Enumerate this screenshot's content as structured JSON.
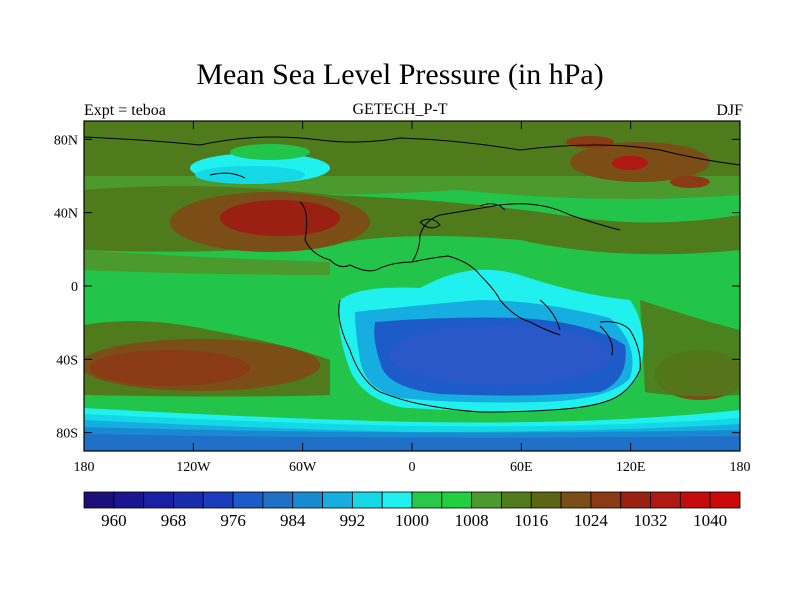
{
  "title": "Mean Sea Level Pressure (in hPa)",
  "subtitle": "GETECH_P-T",
  "left_label": "Expt = teboa",
  "right_label": "DJF",
  "map": {
    "lon_range": [
      -180,
      180
    ],
    "lat_range": [
      -90,
      90
    ],
    "lat_ticks": [
      {
        "value": 80,
        "label": "80N"
      },
      {
        "value": 40,
        "label": "40N"
      },
      {
        "value": 0,
        "label": "0"
      },
      {
        "value": -40,
        "label": "40S"
      },
      {
        "value": -80,
        "label": "80S"
      }
    ],
    "lon_ticks": [
      {
        "value": -180,
        "label": "180"
      },
      {
        "value": -120,
        "label": "120W"
      },
      {
        "value": -60,
        "label": "60W"
      },
      {
        "value": 0,
        "label": "0"
      },
      {
        "value": 60,
        "label": "60E"
      },
      {
        "value": 120,
        "label": "120E"
      },
      {
        "value": 180,
        "label": "180"
      }
    ]
  },
  "colorbar": {
    "levels": [
      960,
      964,
      968,
      972,
      976,
      980,
      984,
      988,
      992,
      996,
      1000,
      1004,
      1008,
      1012,
      1016,
      1020,
      1024,
      1028,
      1032,
      1036,
      1040
    ],
    "labels": [
      "960",
      "968",
      "976",
      "984",
      "992",
      "1000",
      "1008",
      "1016",
      "1024",
      "1032",
      "1040"
    ],
    "colors": [
      "#1d0f7a",
      "#1a1591",
      "#1a1fa3",
      "#1a2bab",
      "#1a3cbd",
      "#1c5bc8",
      "#2070c7",
      "#1a8ad0",
      "#16aee0",
      "#14d8e6",
      "#20f0ee",
      "#28c94a",
      "#20d040",
      "#4c9a2e",
      "#4f7b1c",
      "#5a6616",
      "#7a4e16",
      "#8a3a14",
      "#9a2014",
      "#b01814",
      "#c40c0c",
      "#cc0808"
    ]
  }
}
